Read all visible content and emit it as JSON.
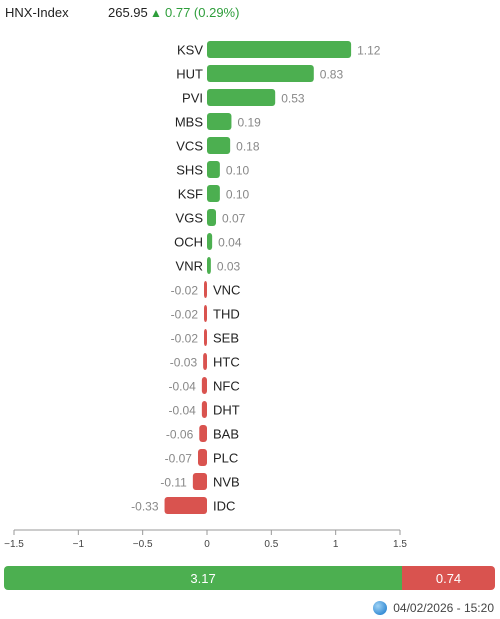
{
  "header": {
    "index_name": "HNX-Index",
    "index_value": "265.95",
    "arrow": "▲",
    "change": "0.77 (0.29%)"
  },
  "chart_data": {
    "type": "bar",
    "orientation": "horizontal",
    "categories": [
      "KSV",
      "HUT",
      "PVI",
      "MBS",
      "VCS",
      "SHS",
      "KSF",
      "VGS",
      "OCH",
      "VNR",
      "VNC",
      "THD",
      "SEB",
      "HTC",
      "NFC",
      "DHT",
      "BAB",
      "PLC",
      "NVB",
      "IDC"
    ],
    "values": [
      1.12,
      0.83,
      0.53,
      0.19,
      0.18,
      0.1,
      0.1,
      0.07,
      0.04,
      0.03,
      -0.02,
      -0.02,
      -0.02,
      -0.03,
      -0.04,
      -0.04,
      -0.06,
      -0.07,
      -0.11,
      -0.33
    ],
    "labels": [
      "1.12",
      "0.83",
      "0.53",
      "0.19",
      "0.18",
      "0.10",
      "0.10",
      "0.07",
      "0.04",
      "0.03",
      "-0.02",
      "-0.02",
      "-0.02",
      "-0.03",
      "-0.04",
      "-0.04",
      "-0.06",
      "-0.07",
      "-0.11",
      "-0.33"
    ],
    "xlim": [
      -1.5,
      1.5
    ],
    "xticks": [
      -1.5,
      -1,
      -0.5,
      0,
      0.5,
      1,
      1.5
    ],
    "xtick_labels": [
      "−1.5",
      "−1",
      "−0.5",
      "0",
      "0.5",
      "1",
      "1.5"
    ],
    "colors": {
      "positive": "#4caf50",
      "negative": "#d9534f"
    },
    "grid": false
  },
  "summary": {
    "up_value": 3.17,
    "down_value": 0.74,
    "up_label": "3.17",
    "down_label": "0.74"
  },
  "footer": {
    "timestamp": "04/02/2026 - 15:20",
    "icon": "globe-icon"
  }
}
